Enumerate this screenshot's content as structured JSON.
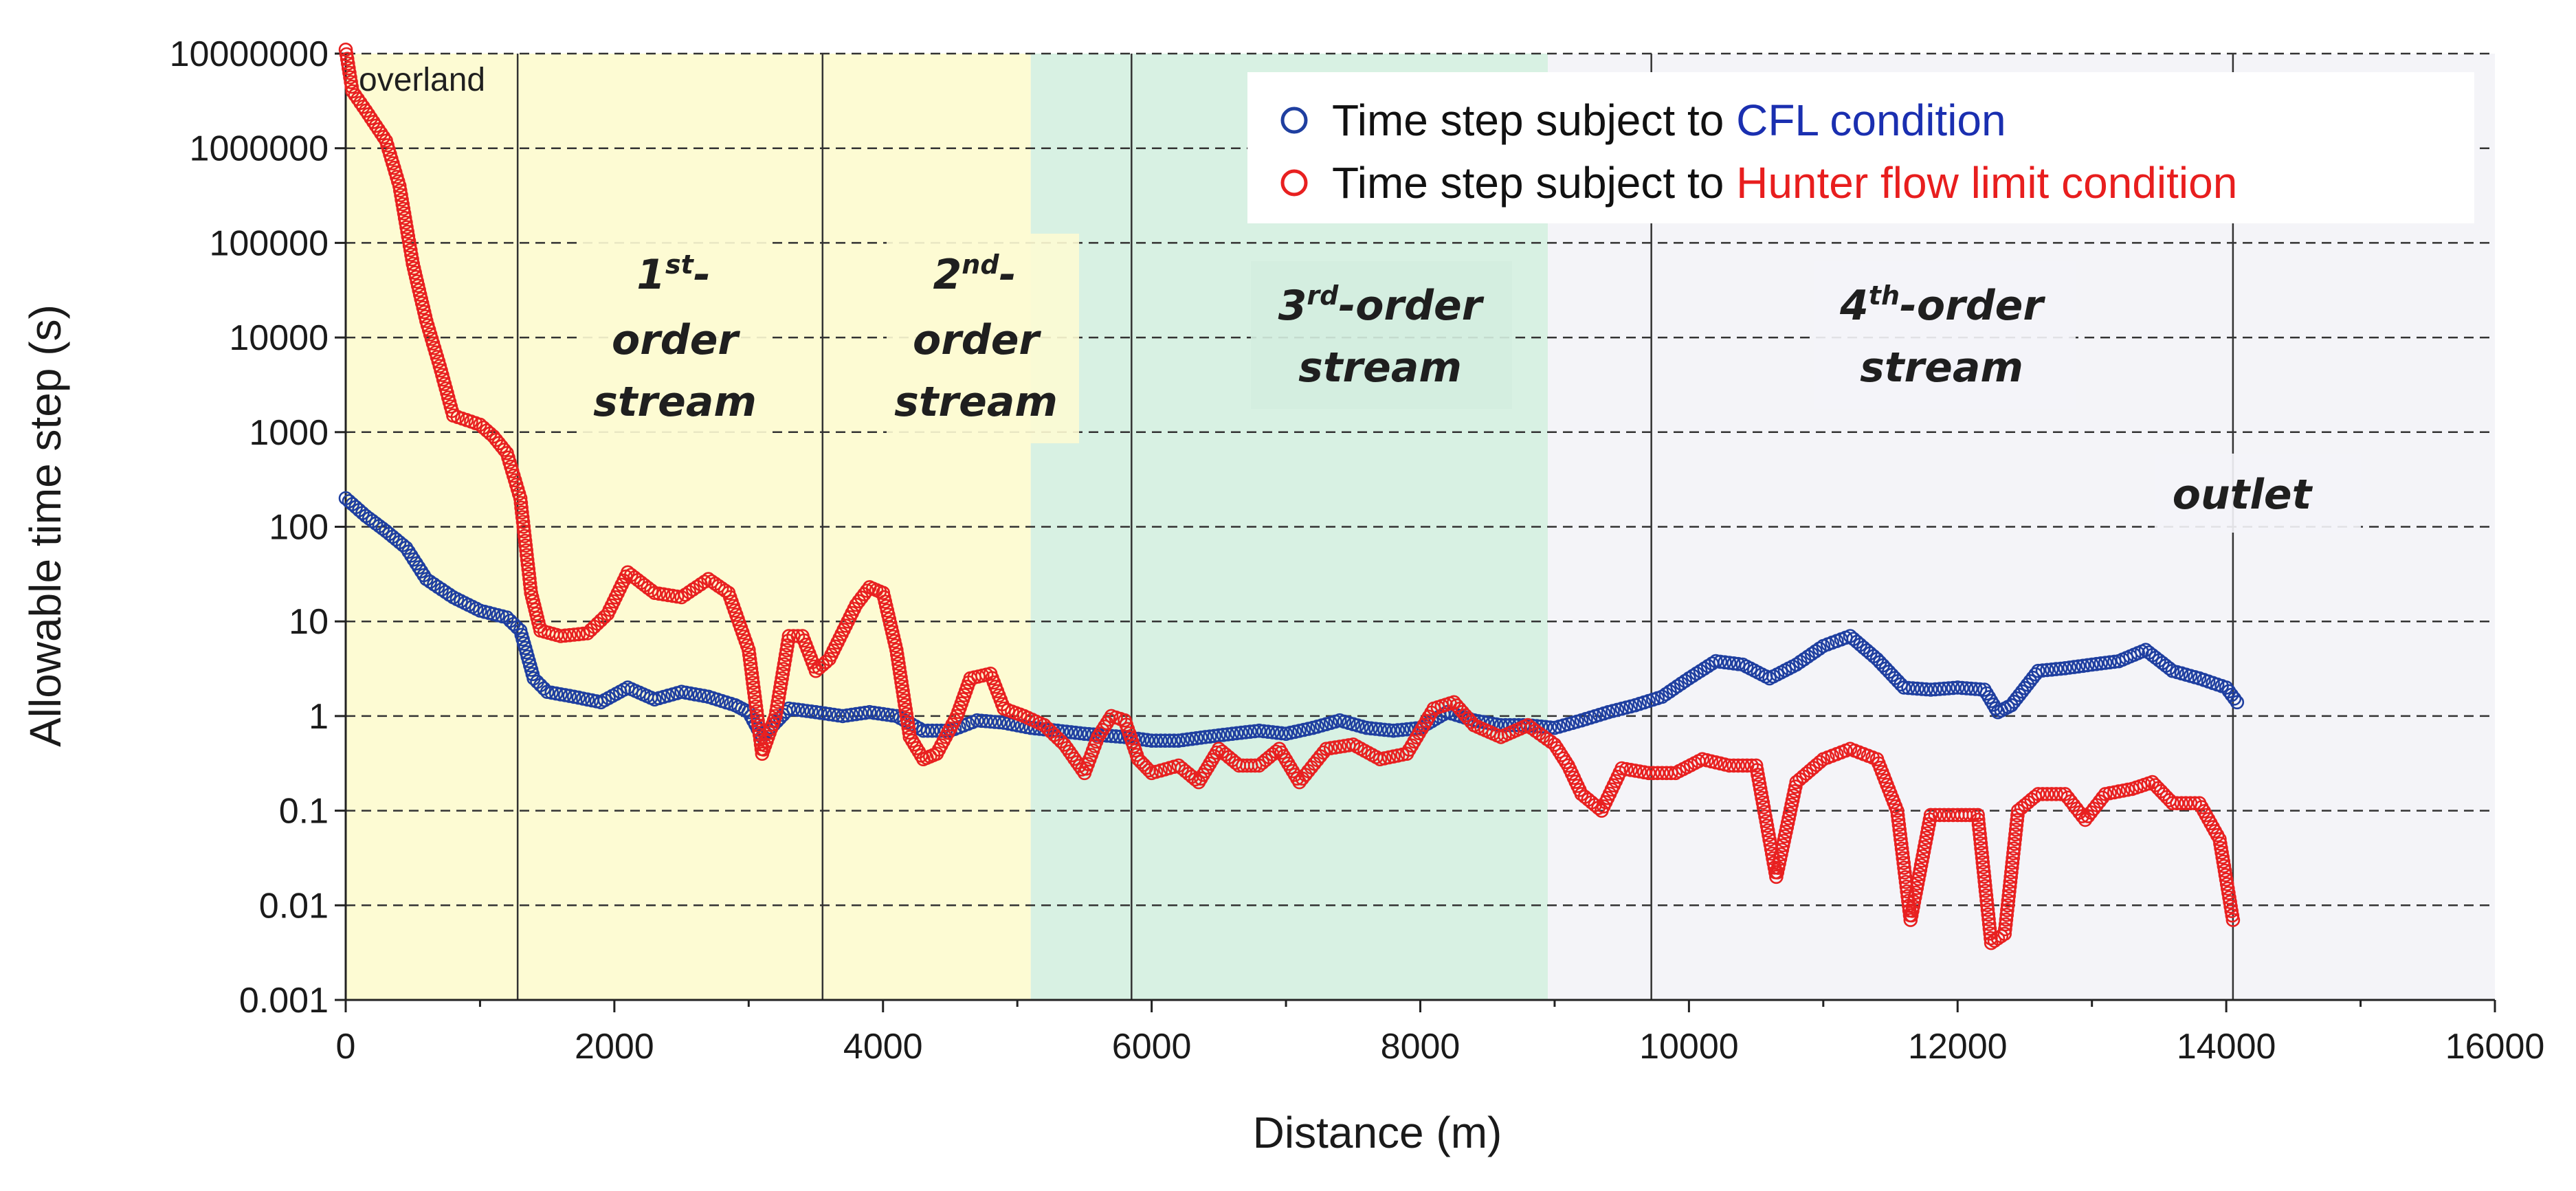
{
  "chart_data": {
    "type": "scatter",
    "y_scale": "log",
    "ylabel": "Allowable time step (s)",
    "xlabel": "Distance (m)",
    "xlim": [
      0,
      16000
    ],
    "ylim": [
      0.001,
      10000000
    ],
    "x_ticks": [
      0,
      2000,
      4000,
      6000,
      8000,
      10000,
      12000,
      14000,
      16000
    ],
    "x_tick_labels": [
      "0",
      "2000",
      "4000",
      "6000",
      "8000",
      "10000",
      "12000",
      "14000",
      "16000"
    ],
    "y_ticks": [
      0.001,
      0.01,
      0.1,
      1,
      10,
      100,
      1000,
      10000,
      100000,
      1000000,
      10000000
    ],
    "y_tick_labels": [
      "0.001",
      "0.01",
      "0.1",
      "1",
      "10",
      "100",
      "1000",
      "10000",
      "100000",
      "1000000",
      "10000000"
    ],
    "grid": "horizontal dashed",
    "legend_position": "top-right",
    "legend": [
      {
        "prefix": "Time step subject to ",
        "highlight": "CFL condition",
        "color": "#1a2fb0",
        "marker_color": "#1f3fa0"
      },
      {
        "prefix": "Time step subject to ",
        "highlight": "Hunter flow limit condition",
        "color": "#e81e1e",
        "marker_color": "#e82020"
      }
    ],
    "regions": [
      {
        "name": "yellow-region",
        "x_start": 0,
        "x_end": 5100,
        "color": "#fdfbd3"
      },
      {
        "name": "green-region",
        "x_start": 5100,
        "x_end": 8950,
        "color": "#d8f1e3"
      },
      {
        "name": "gray-region",
        "x_start": 8950,
        "x_end": 16000,
        "color": "#f4f4f8"
      }
    ],
    "boundaries": [
      1280,
      3550,
      5850,
      9720,
      14050
    ],
    "annotations": {
      "overland": "overland",
      "first_order": {
        "num": "1",
        "sup": "st",
        "line1_suffix": "-",
        "line2": "order",
        "line3": "stream"
      },
      "second_order": {
        "num": "2",
        "sup": "nd",
        "line1_suffix": "-",
        "line2": "order",
        "line3": "stream"
      },
      "third_order": {
        "num": "3",
        "sup": "rd",
        "line1_suffix": "-order",
        "line2": "stream"
      },
      "fourth_order": {
        "num": "4",
        "sup": "th",
        "line1_suffix": "-order",
        "line2": "stream"
      },
      "outlet": "outlet"
    },
    "series": [
      {
        "name": "CFL",
        "color": "#1f3fa0",
        "points": [
          [
            0,
            200
          ],
          [
            150,
            130
          ],
          [
            300,
            90
          ],
          [
            450,
            60
          ],
          [
            600,
            28
          ],
          [
            800,
            18
          ],
          [
            1000,
            13
          ],
          [
            1200,
            11
          ],
          [
            1300,
            8
          ],
          [
            1400,
            2.5
          ],
          [
            1500,
            1.8
          ],
          [
            1700,
            1.6
          ],
          [
            1900,
            1.4
          ],
          [
            2100,
            2.0
          ],
          [
            2300,
            1.5
          ],
          [
            2500,
            1.8
          ],
          [
            2700,
            1.6
          ],
          [
            2900,
            1.3
          ],
          [
            3000,
            1.1
          ],
          [
            3100,
            0.6
          ],
          [
            3300,
            1.2
          ],
          [
            3500,
            1.1
          ],
          [
            3700,
            1.0
          ],
          [
            3900,
            1.1
          ],
          [
            4100,
            1.0
          ],
          [
            4300,
            0.7
          ],
          [
            4500,
            0.7
          ],
          [
            4700,
            0.9
          ],
          [
            4900,
            0.85
          ],
          [
            5100,
            0.75
          ],
          [
            5300,
            0.7
          ],
          [
            5500,
            0.65
          ],
          [
            5800,
            0.6
          ],
          [
            6000,
            0.55
          ],
          [
            6200,
            0.55
          ],
          [
            6400,
            0.6
          ],
          [
            6600,
            0.65
          ],
          [
            6800,
            0.7
          ],
          [
            7000,
            0.65
          ],
          [
            7200,
            0.75
          ],
          [
            7400,
            0.9
          ],
          [
            7600,
            0.75
          ],
          [
            7800,
            0.7
          ],
          [
            8000,
            0.75
          ],
          [
            8200,
            1.1
          ],
          [
            8400,
            0.9
          ],
          [
            8600,
            0.8
          ],
          [
            8800,
            0.8
          ],
          [
            9000,
            0.75
          ],
          [
            9200,
            0.9
          ],
          [
            9400,
            1.1
          ],
          [
            9600,
            1.3
          ],
          [
            9800,
            1.6
          ],
          [
            10000,
            2.5
          ],
          [
            10200,
            3.8
          ],
          [
            10400,
            3.5
          ],
          [
            10600,
            2.5
          ],
          [
            10800,
            3.5
          ],
          [
            11000,
            5.5
          ],
          [
            11200,
            7.0
          ],
          [
            11400,
            4.0
          ],
          [
            11600,
            2.0
          ],
          [
            11800,
            1.9
          ],
          [
            12000,
            2.0
          ],
          [
            12200,
            1.9
          ],
          [
            12300,
            1.1
          ],
          [
            12400,
            1.3
          ],
          [
            12600,
            3.0
          ],
          [
            12800,
            3.2
          ],
          [
            13000,
            3.5
          ],
          [
            13200,
            3.8
          ],
          [
            13400,
            5.0
          ],
          [
            13600,
            3.0
          ],
          [
            13800,
            2.5
          ],
          [
            14000,
            2.0
          ],
          [
            14080,
            1.4
          ]
        ]
      },
      {
        "name": "Hunter",
        "color": "#e82020",
        "points": [
          [
            0,
            11000000
          ],
          [
            50,
            4000000
          ],
          [
            150,
            2500000
          ],
          [
            300,
            1200000
          ],
          [
            400,
            400000
          ],
          [
            500,
            60000
          ],
          [
            600,
            15000
          ],
          [
            700,
            5000
          ],
          [
            800,
            1500
          ],
          [
            1000,
            1200
          ],
          [
            1100,
            900
          ],
          [
            1200,
            600
          ],
          [
            1300,
            200
          ],
          [
            1380,
            20
          ],
          [
            1450,
            8
          ],
          [
            1600,
            7
          ],
          [
            1800,
            7.5
          ],
          [
            1950,
            12
          ],
          [
            2100,
            33
          ],
          [
            2300,
            20
          ],
          [
            2500,
            18
          ],
          [
            2700,
            28
          ],
          [
            2850,
            20
          ],
          [
            3000,
            5
          ],
          [
            3100,
            0.4
          ],
          [
            3200,
            1
          ],
          [
            3300,
            7
          ],
          [
            3400,
            7
          ],
          [
            3500,
            3
          ],
          [
            3600,
            4
          ],
          [
            3800,
            15
          ],
          [
            3900,
            23
          ],
          [
            4000,
            20
          ],
          [
            4100,
            5
          ],
          [
            4200,
            0.6
          ],
          [
            4300,
            0.35
          ],
          [
            4400,
            0.4
          ],
          [
            4550,
            1
          ],
          [
            4650,
            2.5
          ],
          [
            4800,
            2.8
          ],
          [
            4900,
            1.2
          ],
          [
            5050,
            1.0
          ],
          [
            5200,
            0.8
          ],
          [
            5350,
            0.5
          ],
          [
            5500,
            0.25
          ],
          [
            5600,
            0.6
          ],
          [
            5700,
            1.0
          ],
          [
            5800,
            0.9
          ],
          [
            5900,
            0.35
          ],
          [
            6000,
            0.25
          ],
          [
            6200,
            0.3
          ],
          [
            6350,
            0.2
          ],
          [
            6500,
            0.45
          ],
          [
            6650,
            0.3
          ],
          [
            6800,
            0.3
          ],
          [
            6950,
            0.45
          ],
          [
            7100,
            0.2
          ],
          [
            7300,
            0.45
          ],
          [
            7500,
            0.5
          ],
          [
            7700,
            0.35
          ],
          [
            7900,
            0.4
          ],
          [
            8100,
            1.2
          ],
          [
            8250,
            1.4
          ],
          [
            8400,
            0.8
          ],
          [
            8600,
            0.6
          ],
          [
            8800,
            0.8
          ],
          [
            9000,
            0.5
          ],
          [
            9100,
            0.3
          ],
          [
            9200,
            0.15
          ],
          [
            9350,
            0.1
          ],
          [
            9500,
            0.28
          ],
          [
            9700,
            0.25
          ],
          [
            9900,
            0.25
          ],
          [
            10100,
            0.35
          ],
          [
            10300,
            0.3
          ],
          [
            10500,
            0.3
          ],
          [
            10650,
            0.02
          ],
          [
            10800,
            0.2
          ],
          [
            11000,
            0.35
          ],
          [
            11200,
            0.45
          ],
          [
            11400,
            0.35
          ],
          [
            11550,
            0.1
          ],
          [
            11650,
            0.007
          ],
          [
            11800,
            0.09
          ],
          [
            12000,
            0.09
          ],
          [
            12150,
            0.09
          ],
          [
            12250,
            0.004
          ],
          [
            12350,
            0.005
          ],
          [
            12450,
            0.1
          ],
          [
            12600,
            0.15
          ],
          [
            12800,
            0.15
          ],
          [
            12950,
            0.08
          ],
          [
            13100,
            0.15
          ],
          [
            13300,
            0.17
          ],
          [
            13450,
            0.2
          ],
          [
            13600,
            0.12
          ],
          [
            13800,
            0.12
          ],
          [
            13950,
            0.05
          ],
          [
            14050,
            0.007
          ]
        ]
      }
    ]
  }
}
